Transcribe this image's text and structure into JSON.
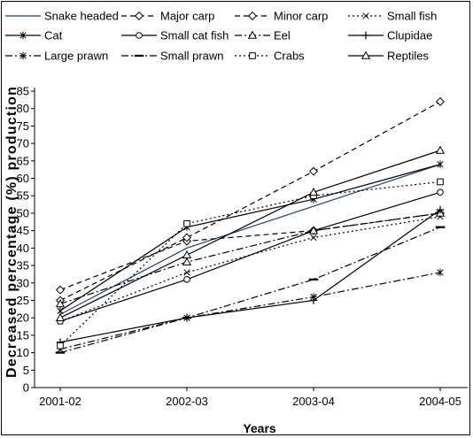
{
  "chart_data": {
    "type": "line",
    "categories": [
      "2001-02",
      "2002-03",
      "2003-04",
      "2004-05"
    ],
    "xlabel": "Years",
    "ylabel": "Decreased percentage (%) production",
    "ylim": [
      0,
      85
    ],
    "yticks": [
      0,
      5,
      10,
      15,
      20,
      25,
      30,
      35,
      40,
      45,
      50,
      55,
      60,
      65,
      70,
      75,
      80,
      85
    ],
    "grid": false,
    "legend": "top",
    "series": [
      {
        "name": "Snake headed",
        "values": [
          21,
          40,
          52,
          64
        ],
        "color": "#1f3c8c",
        "dash": "solid",
        "marker": "none"
      },
      {
        "name": "Major carp",
        "values": [
          28,
          42,
          45,
          50
        ],
        "color": "#000000",
        "dash": "dash",
        "marker": "diamond"
      },
      {
        "name": "Minor carp",
        "values": [
          25,
          43,
          62,
          82
        ],
        "color": "#000000",
        "dash": "dash",
        "marker": "diamond"
      },
      {
        "name": "Small fish",
        "values": [
          19,
          33,
          43,
          49
        ],
        "color": "#000000",
        "dash": "dot",
        "marker": "x"
      },
      {
        "name": "Cat",
        "values": [
          22,
          46,
          54,
          64
        ],
        "color": "#000000",
        "dash": "solid",
        "marker": "star"
      },
      {
        "name": "Small cat fish",
        "values": [
          19,
          31,
          45,
          56
        ],
        "color": "#000000",
        "dash": "solid",
        "marker": "circle"
      },
      {
        "name": "Eel",
        "values": [
          24,
          36,
          45,
          50
        ],
        "color": "#000000",
        "dash": "dashdot",
        "marker": "triangle"
      },
      {
        "name": "Clupidae",
        "values": [
          13,
          20,
          25,
          51
        ],
        "color": "#000000",
        "dash": "solid",
        "marker": "plus"
      },
      {
        "name": "Large prawn",
        "values": [
          11,
          20,
          26,
          33
        ],
        "color": "#000000",
        "dash": "dashdot",
        "marker": "star"
      },
      {
        "name": "Small prawn",
        "values": [
          10,
          20,
          31,
          46
        ],
        "color": "#000000",
        "dash": "dashdot",
        "marker": "dash"
      },
      {
        "name": "Crabs",
        "values": [
          12,
          47,
          55,
          59
        ],
        "color": "#000000",
        "dash": "dot",
        "marker": "square"
      },
      {
        "name": "Reptiles",
        "values": [
          20,
          38,
          56,
          68
        ],
        "color": "#000000",
        "dash": "solid",
        "marker": "triangle"
      }
    ]
  }
}
